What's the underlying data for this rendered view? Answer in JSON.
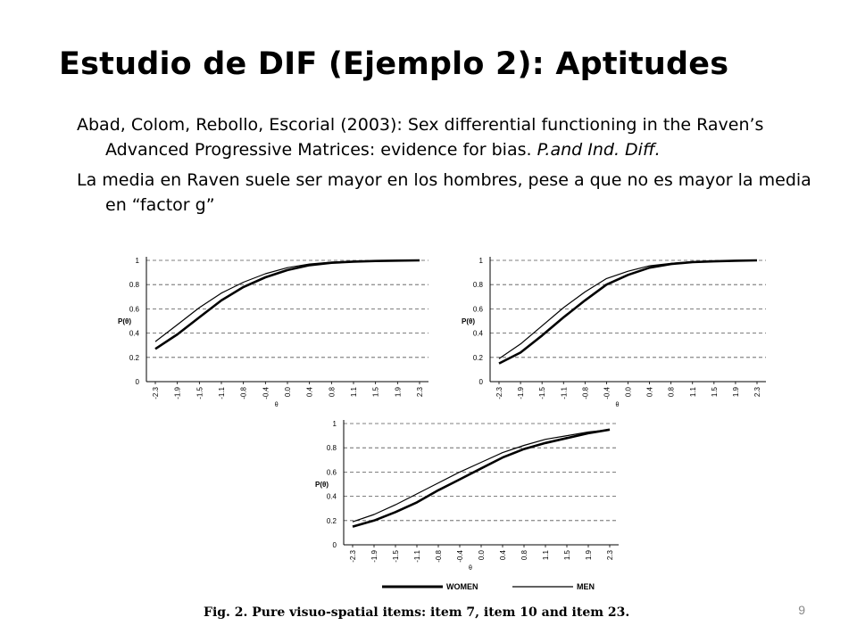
{
  "slide": {
    "title": "Estudio de DIF (Ejemplo 2): Aptitudes",
    "bullet1_text": "Abad, Colom, Rebollo, Escorial (2003): Sex differential functioning in the Raven’s Advanced Progressive Matrices: evidence for bias. ",
    "bullet1_italic": "P.and Ind. Diff.",
    "bullet2": "La media en Raven suele ser mayor en los hombres, pese a que no es mayor la media en “factor g”",
    "page_number": "9"
  },
  "figure": {
    "caption": "Fig. 2.  Pure visuo-spatial items: item 7, item 10 and item 23.",
    "legend": [
      {
        "label": "WOMEN",
        "style": "thick"
      },
      {
        "label": "MEN",
        "style": "thin"
      }
    ]
  },
  "chart_data": [
    {
      "type": "line",
      "title": "",
      "xlabel": "θ",
      "ylabel": "P(θ)",
      "x": [
        "-2.3",
        "-1.9",
        "-1.5",
        "-1.1",
        "-0.8",
        "-0.4",
        "0.0",
        "0.4",
        "0.8",
        "1.1",
        "1.5",
        "1.9",
        "2.3"
      ],
      "ylim": [
        0,
        1
      ],
      "yticks": [
        "0",
        "0.2",
        "0.4",
        "0.6",
        "0.8",
        "1"
      ],
      "grid": "horizontal dashed",
      "series": [
        {
          "name": "WOMEN",
          "values": [
            0.27,
            0.39,
            0.53,
            0.67,
            0.78,
            0.86,
            0.92,
            0.96,
            0.98,
            0.99,
            0.995,
            0.998,
            1.0
          ]
        },
        {
          "name": "MEN",
          "values": [
            0.33,
            0.47,
            0.61,
            0.73,
            0.82,
            0.89,
            0.94,
            0.97,
            0.985,
            0.992,
            0.996,
            0.998,
            1.0
          ]
        }
      ]
    },
    {
      "type": "line",
      "title": "",
      "xlabel": "θ",
      "ylabel": "P(θ)",
      "x": [
        "-2.3",
        "-1.9",
        "-1.5",
        "-1.1",
        "-0.8",
        "-0.4",
        "0.0",
        "0.4",
        "0.8",
        "1.1",
        "1.5",
        "1.9",
        "2.3"
      ],
      "ylim": [
        0,
        1
      ],
      "yticks": [
        "0",
        "0.2",
        "0.4",
        "0.6",
        "0.8",
        "1"
      ],
      "grid": "horizontal dashed",
      "series": [
        {
          "name": "WOMEN",
          "values": [
            0.15,
            0.24,
            0.38,
            0.53,
            0.67,
            0.8,
            0.88,
            0.94,
            0.97,
            0.985,
            0.992,
            0.997,
            1.0
          ]
        },
        {
          "name": "MEN",
          "values": [
            0.19,
            0.31,
            0.46,
            0.61,
            0.74,
            0.85,
            0.91,
            0.955,
            0.975,
            0.99,
            0.995,
            0.998,
            1.0
          ]
        }
      ]
    },
    {
      "type": "line",
      "title": "",
      "xlabel": "θ",
      "ylabel": "P(θ)",
      "x": [
        "-2.3",
        "-1.9",
        "-1.5",
        "-1.1",
        "-0.8",
        "-0.4",
        "0.0",
        "0.4",
        "0.8",
        "1.1",
        "1.5",
        "1.9",
        "2.3"
      ],
      "ylim": [
        0,
        1
      ],
      "yticks": [
        "0",
        "0.2",
        "0.4",
        "0.6",
        "0.8",
        "1"
      ],
      "grid": "horizontal dashed",
      "series": [
        {
          "name": "WOMEN",
          "values": [
            0.15,
            0.2,
            0.27,
            0.35,
            0.45,
            0.54,
            0.63,
            0.72,
            0.79,
            0.84,
            0.88,
            0.92,
            0.95
          ]
        },
        {
          "name": "MEN",
          "values": [
            0.19,
            0.25,
            0.33,
            0.42,
            0.51,
            0.6,
            0.68,
            0.76,
            0.82,
            0.87,
            0.9,
            0.93,
            0.95
          ]
        }
      ]
    }
  ]
}
